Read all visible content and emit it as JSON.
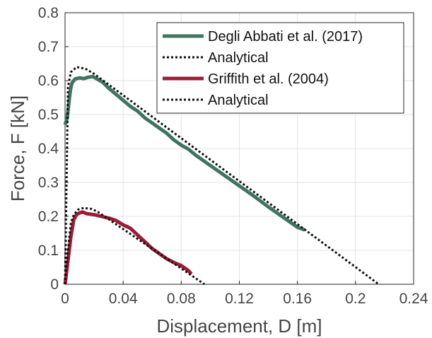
{
  "chart_data": {
    "type": "line",
    "xlabel": "Displacement, D [m]",
    "ylabel": "Force, F [kN]",
    "xlim": [
      0,
      0.24
    ],
    "ylim": [
      0,
      0.8
    ],
    "xticks": [
      0,
      0.04,
      0.08,
      0.12,
      0.16,
      0.2,
      0.24
    ],
    "xtick_labels": [
      "0",
      "0.04",
      "0.08",
      "0.12",
      "0.16",
      "0.2",
      "0.24"
    ],
    "yticks": [
      0,
      0.1,
      0.2,
      0.3,
      0.4,
      0.5,
      0.6,
      0.7,
      0.8
    ],
    "ytick_labels": [
      "0",
      "0.1",
      "0.2",
      "0.3",
      "0.4",
      "0.5",
      "0.6",
      "0.7",
      "0.8"
    ],
    "grid": true,
    "legend_position": "top-right",
    "series": [
      {
        "name": "Degli Abbati et al. (2017)",
        "color": "#3e7460",
        "style": "solid",
        "x": [
          0.0,
          0.0015,
          0.003,
          0.004,
          0.005,
          0.007,
          0.01,
          0.013,
          0.016,
          0.019,
          0.022,
          0.026,
          0.03,
          0.035,
          0.04,
          0.045,
          0.05,
          0.055,
          0.06,
          0.065,
          0.07,
          0.075,
          0.08,
          0.085,
          0.09,
          0.1,
          0.11,
          0.12,
          0.13,
          0.14,
          0.15,
          0.16,
          0.165
        ],
        "y": [
          0.47,
          0.49,
          0.55,
          0.58,
          0.595,
          0.605,
          0.608,
          0.606,
          0.61,
          0.612,
          0.605,
          0.595,
          0.578,
          0.56,
          0.542,
          0.524,
          0.51,
          0.49,
          0.475,
          0.46,
          0.445,
          0.425,
          0.41,
          0.398,
          0.38,
          0.35,
          0.32,
          0.29,
          0.26,
          0.228,
          0.198,
          0.168,
          0.16
        ]
      },
      {
        "name": "Analytical",
        "color": "#111111",
        "style": "dotted",
        "x": [
          0.0,
          0.002,
          0.004,
          0.008,
          0.014,
          0.02,
          0.216
        ],
        "y": [
          0.0,
          0.58,
          0.625,
          0.64,
          0.635,
          0.62,
          0.0
        ]
      },
      {
        "name": "Griffith et al. (2004)",
        "color": "#9a1d35",
        "style": "solid",
        "x": [
          0.0,
          0.002,
          0.004,
          0.006,
          0.008,
          0.01,
          0.012,
          0.015,
          0.02,
          0.025,
          0.03,
          0.035,
          0.04,
          0.045,
          0.05,
          0.055,
          0.06,
          0.065,
          0.07,
          0.075,
          0.08,
          0.085,
          0.087
        ],
        "y": [
          0.0,
          0.07,
          0.14,
          0.19,
          0.206,
          0.21,
          0.213,
          0.208,
          0.205,
          0.2,
          0.195,
          0.188,
          0.175,
          0.165,
          0.145,
          0.125,
          0.105,
          0.09,
          0.075,
          0.064,
          0.055,
          0.04,
          0.03
        ]
      },
      {
        "name": "Analytical",
        "color": "#111111",
        "style": "dotted",
        "x": [
          0.0,
          0.002,
          0.004,
          0.006,
          0.009,
          0.013,
          0.018,
          0.022,
          0.096
        ],
        "y": [
          0.0,
          0.1,
          0.18,
          0.205,
          0.22,
          0.225,
          0.222,
          0.215,
          0.0
        ]
      }
    ]
  }
}
